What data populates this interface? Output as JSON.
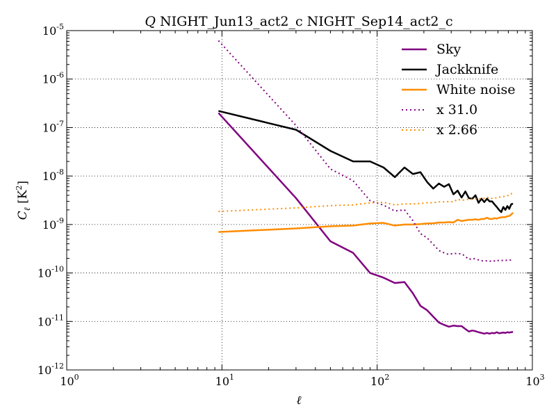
{
  "chart_data": {
    "type": "line",
    "title": "Q NIGHT_Jun13_act2_c NIGHT_Sep14_act2_c",
    "title_italic_prefix": "Q",
    "title_rest": " NIGHT_Jun13_act2_c NIGHT_Sep14_act2_c",
    "xlabel": "ℓ",
    "ylabel": "C_ℓ [K²]",
    "ylabel_main": "C",
    "ylabel_sub": "ℓ",
    "ylabel_unit": " [K",
    "ylabel_unit_exp": "2",
    "ylabel_unit_close": "]",
    "xscale": "log",
    "yscale": "log",
    "xlim": [
      1,
      1000
    ],
    "ylim": [
      1e-12,
      1e-05
    ],
    "grid": true,
    "legend_position": "top-right",
    "x_ticks": [
      {
        "value": 1,
        "base": "10",
        "exp": "0"
      },
      {
        "value": 10,
        "base": "10",
        "exp": "1"
      },
      {
        "value": 100,
        "base": "10",
        "exp": "2"
      },
      {
        "value": 1000,
        "base": "10",
        "exp": "3"
      }
    ],
    "y_ticks": [
      {
        "value": 1e-05,
        "base": "10",
        "exp": "-5"
      },
      {
        "value": 1e-06,
        "base": "10",
        "exp": "-6"
      },
      {
        "value": 1e-07,
        "base": "10",
        "exp": "-7"
      },
      {
        "value": 1e-08,
        "base": "10",
        "exp": "-8"
      },
      {
        "value": 1e-09,
        "base": "10",
        "exp": "-9"
      },
      {
        "value": 1e-10,
        "base": "10",
        "exp": "-10"
      },
      {
        "value": 1e-11,
        "base": "10",
        "exp": "-11"
      },
      {
        "value": 1e-12,
        "base": "10",
        "exp": "-12"
      }
    ],
    "series": [
      {
        "name": "Sky",
        "color": "#800080",
        "style": "solid",
        "x": [
          9.5,
          30,
          50,
          70,
          90,
          110,
          130,
          150,
          170,
          190,
          210,
          230,
          250,
          270,
          290,
          310,
          330,
          350,
          370,
          390,
          410,
          430,
          450,
          470,
          490,
          510,
          530,
          550,
          570,
          590,
          610,
          630,
          650,
          670,
          690,
          710,
          730,
          750
        ],
        "y": [
          2e-07,
          3.5e-09,
          4.5e-10,
          2.6e-10,
          1e-10,
          8e-11,
          6.2e-11,
          6.5e-11,
          3.8e-11,
          2.1e-11,
          1.7e-11,
          1.25e-11,
          9.5e-12,
          8.5e-12,
          7.8e-12,
          8.2e-12,
          8e-12,
          8e-12,
          7e-12,
          6.2e-12,
          6.5e-12,
          6.3e-12,
          6e-12,
          5.8e-12,
          5.6e-12,
          5.8e-12,
          5.6e-12,
          5.8e-12,
          5.7e-12,
          6e-12,
          5.7e-12,
          5.8e-12,
          5.9e-12,
          5.8e-12,
          6e-12,
          5.9e-12,
          6e-12,
          6.1e-12
        ]
      },
      {
        "name": "Jackknife",
        "color": "#000000",
        "style": "solid",
        "x": [
          9.5,
          30,
          50,
          70,
          90,
          110,
          130,
          150,
          170,
          190,
          210,
          230,
          250,
          270,
          290,
          310,
          330,
          350,
          370,
          390,
          410,
          430,
          450,
          470,
          490,
          510,
          530,
          550,
          570,
          590,
          610,
          630,
          650,
          670,
          690,
          710,
          730,
          750
        ],
        "y": [
          2.2e-07,
          9e-08,
          3.3e-08,
          2e-08,
          2e-08,
          1.5e-08,
          9.5e-09,
          1.5e-08,
          1.1e-08,
          1.2e-08,
          7.5e-09,
          5.5e-09,
          7e-09,
          6e-09,
          6.8e-09,
          4.2e-09,
          5e-09,
          3.6e-09,
          4.8e-09,
          3.5e-09,
          3.4e-09,
          4e-09,
          2.8e-09,
          3.4e-09,
          2.9e-09,
          3.4e-09,
          3e-09,
          3e-09,
          2.6e-09,
          2.3e-09,
          2e-09,
          1.8e-09,
          2.3e-09,
          2e-09,
          2.4e-09,
          2.1e-09,
          2.6e-09,
          2.7e-09
        ]
      },
      {
        "name": "White noise",
        "color": "#FF8C00",
        "style": "solid",
        "x": [
          9.5,
          30,
          50,
          70,
          90,
          110,
          130,
          150,
          170,
          190,
          210,
          230,
          250,
          270,
          290,
          310,
          330,
          350,
          370,
          390,
          410,
          430,
          450,
          470,
          490,
          510,
          530,
          550,
          570,
          590,
          610,
          630,
          650,
          670,
          690,
          710,
          730,
          750
        ],
        "y": [
          7e-10,
          8.3e-10,
          9.2e-10,
          9.5e-10,
          1.05e-09,
          1.08e-09,
          9.5e-10,
          1e-09,
          1e-09,
          1.02e-09,
          1.05e-09,
          1.06e-09,
          1.1e-09,
          1.1e-09,
          1.12e-09,
          1.1e-09,
          1.25e-09,
          1.18e-09,
          1.22e-09,
          1.25e-09,
          1.25e-09,
          1.28e-09,
          1.25e-09,
          1.3e-09,
          1.3e-09,
          1.38e-09,
          1.3e-09,
          1.3e-09,
          1.35e-09,
          1.32e-09,
          1.38e-09,
          1.4e-09,
          1.42e-09,
          1.42e-09,
          1.48e-09,
          1.5e-09,
          1.6e-09,
          1.75e-09
        ]
      },
      {
        "name": "x 31.0",
        "color": "#800080",
        "style": "dotted",
        "x": [
          9.5,
          30,
          50,
          70,
          90,
          110,
          130,
          150,
          170,
          190,
          210,
          230,
          250,
          270,
          290,
          310,
          330,
          350,
          370,
          390,
          410,
          430,
          450,
          470,
          490,
          510,
          530,
          550,
          570,
          590,
          610,
          630,
          650,
          670,
          690,
          710,
          730,
          750
        ],
        "y": [
          6.2e-06,
          1.1e-07,
          1.4e-08,
          8e-09,
          3.1e-09,
          2.5e-09,
          1.9e-09,
          2e-09,
          1.2e-09,
          6.5e-10,
          5.3e-10,
          3.9e-10,
          2.9e-10,
          2.6e-10,
          2.4e-10,
          2.55e-10,
          2.5e-10,
          2.5e-10,
          2.2e-10,
          1.9e-10,
          2e-10,
          1.95e-10,
          1.86e-10,
          1.8e-10,
          1.74e-10,
          1.8e-10,
          1.74e-10,
          1.8e-10,
          1.77e-10,
          1.86e-10,
          1.77e-10,
          1.8e-10,
          1.83e-10,
          1.8e-10,
          1.86e-10,
          1.83e-10,
          1.86e-10,
          1.89e-10
        ]
      },
      {
        "name": "x 2.66",
        "color": "#FF8C00",
        "style": "dotted",
        "x": [
          9.5,
          30,
          50,
          70,
          90,
          110,
          130,
          150,
          170,
          190,
          210,
          230,
          250,
          270,
          290,
          310,
          330,
          350,
          370,
          390,
          410,
          430,
          450,
          470,
          490,
          510,
          530,
          550,
          570,
          590,
          610,
          630,
          650,
          670,
          690,
          710,
          730,
          750
        ],
        "y": [
          1.86e-09,
          2.2e-09,
          2.45e-09,
          2.53e-09,
          2.8e-09,
          2.87e-09,
          2.53e-09,
          2.66e-09,
          2.66e-09,
          2.71e-09,
          2.8e-09,
          2.82e-09,
          2.93e-09,
          2.93e-09,
          2.98e-09,
          2.93e-09,
          3.33e-09,
          3.14e-09,
          3.25e-09,
          3.33e-09,
          3.33e-09,
          3.4e-09,
          3.33e-09,
          3.46e-09,
          3.46e-09,
          3.67e-09,
          3.46e-09,
          3.46e-09,
          3.59e-09,
          3.51e-09,
          3.67e-09,
          3.72e-09,
          3.78e-09,
          3.78e-09,
          3.94e-09,
          3.99e-09,
          4.26e-09,
          4.66e-09
        ]
      }
    ]
  }
}
